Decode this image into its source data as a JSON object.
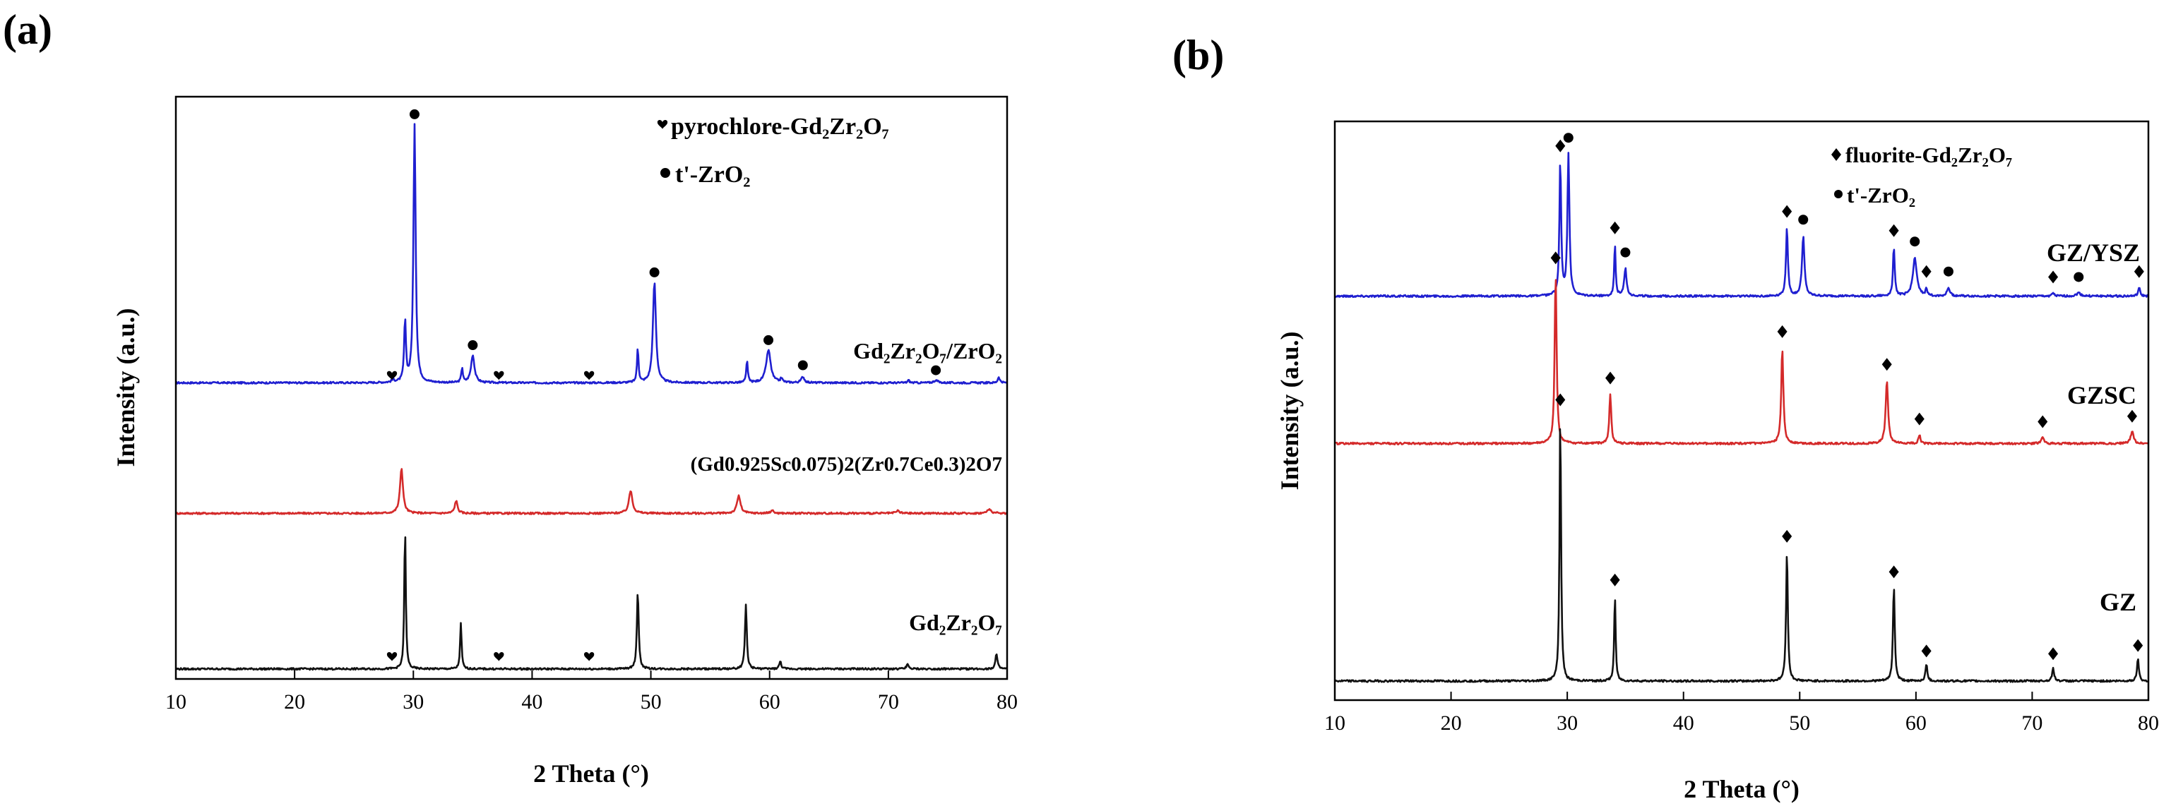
{
  "chart_data": [
    {
      "panel": "(a)",
      "type": "line",
      "title": "",
      "xlabel": "2 Theta (°)",
      "ylabel": "Intensity (a.u.)",
      "xlim": [
        10,
        80
      ],
      "xticks": [
        10,
        20,
        30,
        40,
        50,
        60,
        70,
        80
      ],
      "yticks_shown": false,
      "legend": [
        {
          "marker": "heart",
          "text": "pyrochlore-Gd₂Zr₂O₇"
        },
        {
          "marker": "circle",
          "text": "t'-ZrO₂"
        }
      ],
      "series": [
        {
          "name": "Gd₂Zr₂O₇/ZrO₂",
          "color": "#1f1fd0",
          "baseline": 5.9,
          "noise": 0.018,
          "peaks": [
            {
              "x": 28.3,
              "h": 0.05,
              "w": 0.25
            },
            {
              "x": 29.3,
              "h": 1.2,
              "w": 0.18
            },
            {
              "x": 30.1,
              "h": 5.15,
              "w": 0.22
            },
            {
              "x": 34.1,
              "h": 0.3,
              "w": 0.15
            },
            {
              "x": 35.0,
              "h": 0.55,
              "w": 0.35
            },
            {
              "x": 48.9,
              "h": 0.7,
              "w": 0.15
            },
            {
              "x": 50.3,
              "h": 2.0,
              "w": 0.3
            },
            {
              "x": 58.1,
              "h": 0.45,
              "w": 0.15
            },
            {
              "x": 59.9,
              "h": 0.65,
              "w": 0.45
            },
            {
              "x": 61.0,
              "h": 0.08,
              "w": 0.2
            },
            {
              "x": 62.8,
              "h": 0.12,
              "w": 0.3
            },
            {
              "x": 71.7,
              "h": 0.05,
              "w": 0.2
            },
            {
              "x": 74.0,
              "h": 0.05,
              "w": 0.4
            },
            {
              "x": 79.3,
              "h": 0.12,
              "w": 0.2
            }
          ],
          "markers": [
            {
              "type": "heart",
              "x": 28.2,
              "y": 6.05
            },
            {
              "type": "circle",
              "x": 30.1,
              "y": 11.25
            },
            {
              "type": "circle",
              "x": 35.0,
              "y": 6.65
            },
            {
              "type": "heart",
              "x": 37.2,
              "y": 6.05
            },
            {
              "type": "heart",
              "x": 44.8,
              "y": 6.05
            },
            {
              "type": "circle",
              "x": 50.3,
              "y": 8.1
            },
            {
              "type": "circle",
              "x": 59.9,
              "y": 6.75
            },
            {
              "type": "circle",
              "x": 62.8,
              "y": 6.25
            },
            {
              "type": "circle",
              "x": 74.0,
              "y": 6.15
            }
          ]
        },
        {
          "name": "(Gd0.925Sc0.075)2(Zr0.7Ce0.3)2O7",
          "color": "#d42a2a",
          "baseline": 3.3,
          "noise": 0.018,
          "peaks": [
            {
              "x": 29.0,
              "h": 0.9,
              "w": 0.3
            },
            {
              "x": 33.6,
              "h": 0.25,
              "w": 0.28
            },
            {
              "x": 48.3,
              "h": 0.45,
              "w": 0.35
            },
            {
              "x": 57.4,
              "h": 0.35,
              "w": 0.35
            },
            {
              "x": 60.2,
              "h": 0.06,
              "w": 0.3
            },
            {
              "x": 70.8,
              "h": 0.05,
              "w": 0.35
            },
            {
              "x": 78.5,
              "h": 0.08,
              "w": 0.4
            }
          ],
          "markers": []
        },
        {
          "name": "Gd₂Zr₂O₇",
          "color": "#111111",
          "baseline": 0.2,
          "noise": 0.018,
          "peaks": [
            {
              "x": 29.3,
              "h": 2.8,
              "w": 0.15
            },
            {
              "x": 34.0,
              "h": 0.9,
              "w": 0.15
            },
            {
              "x": 48.9,
              "h": 1.55,
              "w": 0.18
            },
            {
              "x": 58.0,
              "h": 1.3,
              "w": 0.18
            },
            {
              "x": 60.9,
              "h": 0.15,
              "w": 0.2
            },
            {
              "x": 71.6,
              "h": 0.1,
              "w": 0.2
            },
            {
              "x": 79.1,
              "h": 0.3,
              "w": 0.2
            }
          ],
          "markers": [
            {
              "type": "heart",
              "x": 28.2,
              "y": 0.45
            },
            {
              "type": "heart",
              "x": 37.2,
              "y": 0.45
            },
            {
              "type": "heart",
              "x": 44.8,
              "y": 0.45
            }
          ]
        }
      ]
    },
    {
      "panel": "(b)",
      "type": "line",
      "title": "",
      "xlabel": "2 Theta (°)",
      "ylabel": "Intensity (a.u.)",
      "xlim": [
        10,
        80
      ],
      "xticks": [
        10,
        20,
        30,
        40,
        50,
        60,
        70,
        80
      ],
      "yticks_shown": false,
      "legend": [
        {
          "marker": "diamond",
          "text": "fluorite-Gd₂Zr₂O₇"
        },
        {
          "marker": "circle",
          "text": "t'-ZrO₂"
        }
      ],
      "series": [
        {
          "name": "GZ/YSZ",
          "color": "#1f1fd0",
          "baseline": 7.4,
          "noise": 0.018,
          "peaks": [
            {
              "x": 29.4,
              "h": 2.45,
              "w": 0.18
            },
            {
              "x": 30.1,
              "h": 2.6,
              "w": 0.2
            },
            {
              "x": 34.1,
              "h": 0.95,
              "w": 0.15
            },
            {
              "x": 35.0,
              "h": 0.5,
              "w": 0.25
            },
            {
              "x": 48.9,
              "h": 1.25,
              "w": 0.2
            },
            {
              "x": 50.3,
              "h": 1.1,
              "w": 0.25
            },
            {
              "x": 58.1,
              "h": 0.9,
              "w": 0.18
            },
            {
              "x": 59.9,
              "h": 0.7,
              "w": 0.4
            },
            {
              "x": 60.9,
              "h": 0.15,
              "w": 0.15
            },
            {
              "x": 62.8,
              "h": 0.15,
              "w": 0.3
            },
            {
              "x": 71.8,
              "h": 0.06,
              "w": 0.2
            },
            {
              "x": 74.0,
              "h": 0.06,
              "w": 0.4
            },
            {
              "x": 79.2,
              "h": 0.15,
              "w": 0.2
            }
          ],
          "markers": [
            {
              "type": "diamond",
              "x": 29.4,
              "y": 10.15
            },
            {
              "type": "circle",
              "x": 30.1,
              "y": 10.3
            },
            {
              "type": "diamond",
              "x": 34.1,
              "y": 8.65
            },
            {
              "type": "circle",
              "x": 35.0,
              "y": 8.2
            },
            {
              "type": "diamond",
              "x": 48.9,
              "y": 8.95
            },
            {
              "type": "circle",
              "x": 50.3,
              "y": 8.8
            },
            {
              "type": "diamond",
              "x": 58.1,
              "y": 8.6
            },
            {
              "type": "circle",
              "x": 59.9,
              "y": 8.4
            },
            {
              "type": "diamond",
              "x": 60.9,
              "y": 7.85
            },
            {
              "type": "circle",
              "x": 62.8,
              "y": 7.85
            },
            {
              "type": "diamond",
              "x": 71.8,
              "y": 7.75
            },
            {
              "type": "circle",
              "x": 74.0,
              "y": 7.75
            },
            {
              "type": "diamond",
              "x": 79.2,
              "y": 7.85
            }
          ]
        },
        {
          "name": "GZSC",
          "color": "#d42a2a",
          "baseline": 4.7,
          "noise": 0.018,
          "peaks": [
            {
              "x": 29.0,
              "h": 3.1,
              "w": 0.2
            },
            {
              "x": 33.7,
              "h": 0.9,
              "w": 0.2
            },
            {
              "x": 48.5,
              "h": 1.75,
              "w": 0.22
            },
            {
              "x": 57.5,
              "h": 1.15,
              "w": 0.25
            },
            {
              "x": 60.3,
              "h": 0.15,
              "w": 0.2
            },
            {
              "x": 70.9,
              "h": 0.12,
              "w": 0.25
            },
            {
              "x": 78.6,
              "h": 0.22,
              "w": 0.3
            }
          ],
          "markers": [
            {
              "type": "diamond",
              "x": 29.0,
              "y": 8.1
            },
            {
              "type": "diamond",
              "x": 33.7,
              "y": 5.9
            },
            {
              "type": "diamond",
              "x": 48.5,
              "y": 6.75
            },
            {
              "type": "diamond",
              "x": 57.5,
              "y": 6.15
            },
            {
              "type": "diamond",
              "x": 60.3,
              "y": 5.15
            },
            {
              "type": "diamond",
              "x": 70.9,
              "y": 5.1
            },
            {
              "type": "diamond",
              "x": 78.6,
              "y": 5.2
            }
          ]
        },
        {
          "name": "GZ",
          "color": "#111111",
          "baseline": 0.35,
          "noise": 0.018,
          "peaks": [
            {
              "x": 29.4,
              "h": 4.9,
              "w": 0.16
            },
            {
              "x": 34.1,
              "h": 1.6,
              "w": 0.15
            },
            {
              "x": 48.9,
              "h": 2.4,
              "w": 0.18
            },
            {
              "x": 58.1,
              "h": 1.75,
              "w": 0.18
            },
            {
              "x": 60.9,
              "h": 0.3,
              "w": 0.2
            },
            {
              "x": 71.8,
              "h": 0.25,
              "w": 0.2
            },
            {
              "x": 79.1,
              "h": 0.4,
              "w": 0.2
            }
          ],
          "markers": [
            {
              "type": "diamond",
              "x": 29.4,
              "y": 5.5
            },
            {
              "type": "diamond",
              "x": 34.1,
              "y": 2.2
            },
            {
              "type": "diamond",
              "x": 48.9,
              "y": 3.0
            },
            {
              "type": "diamond",
              "x": 58.1,
              "y": 2.35
            },
            {
              "type": "diamond",
              "x": 60.9,
              "y": 0.9
            },
            {
              "type": "diamond",
              "x": 71.8,
              "y": 0.85
            },
            {
              "type": "diamond",
              "x": 79.1,
              "y": 1.0
            }
          ]
        }
      ]
    }
  ]
}
